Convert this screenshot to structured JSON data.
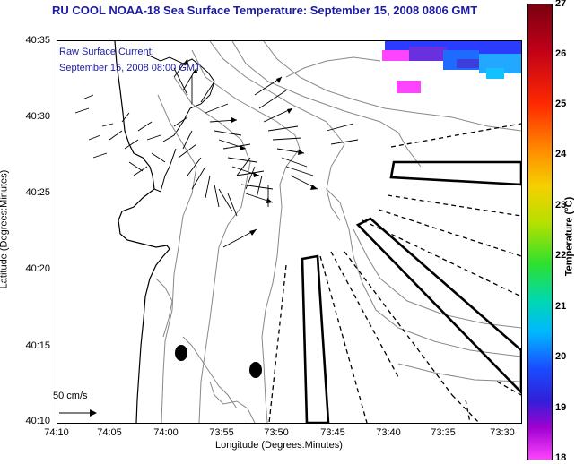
{
  "title": "RU COOL  NOAA-18  Sea Surface Temperature:  September 15, 2008 0806 GMT",
  "legend": {
    "line1": "Raw Surface Current:",
    "line2": "September 15, 2008 08:00 GMT"
  },
  "axes": {
    "xlabel": "Longitude (Degrees:Minutes)",
    "ylabel": "Latitude (Degrees:Minutes)",
    "x_ticks": [
      "74:10",
      "74:05",
      "74:00",
      "73:55",
      "73:50",
      "73:45",
      "73:40",
      "73:35",
      "73:30"
    ],
    "y_ticks": [
      "40:35",
      "40:30",
      "40:25",
      "40:20",
      "40:15",
      "40:10"
    ]
  },
  "colorbar": {
    "label": "Temperature (°C)",
    "ticks": [
      "27",
      "26",
      "25",
      "24",
      "23",
      "22",
      "21",
      "20",
      "19",
      "18"
    ]
  },
  "scale": {
    "label": "50 cm/s"
  }
}
